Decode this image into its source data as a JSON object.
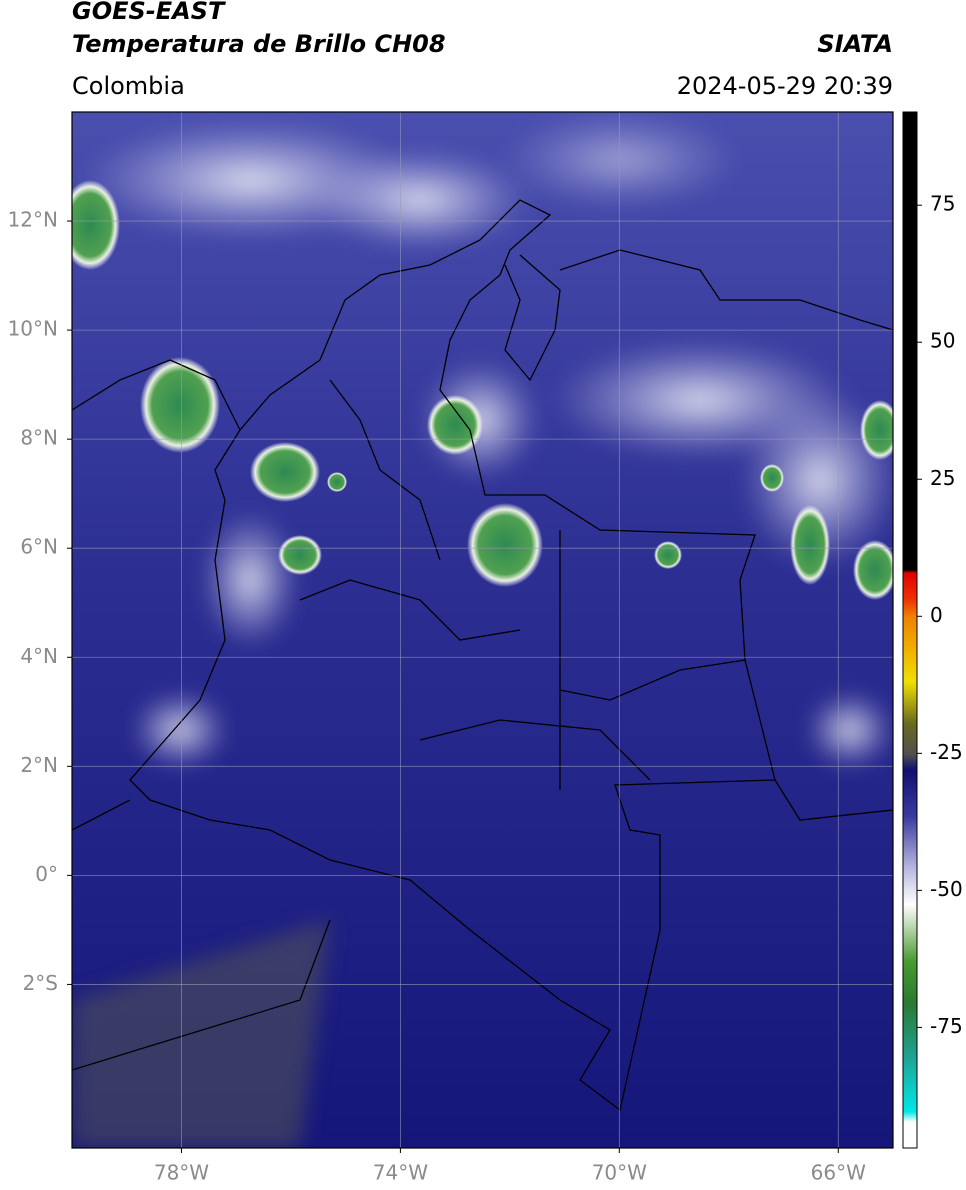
{
  "header": {
    "title_line1": "GOES-EAST",
    "title_line2": "Temperatura de Brillo CH08",
    "source": "SIATA",
    "region": "Colombia",
    "timestamp": "2024-05-29 20:39"
  },
  "map": {
    "xlim": [
      -80,
      -65
    ],
    "ylim": [
      -5,
      14
    ],
    "xticks": [
      {
        "value": -78,
        "label": "78°W"
      },
      {
        "value": -74,
        "label": "74°W"
      },
      {
        "value": -70,
        "label": "70°W"
      },
      {
        "value": -66,
        "label": "66°W"
      }
    ],
    "yticks": [
      {
        "value": 12,
        "label": "12°N"
      },
      {
        "value": 10,
        "label": "10°N"
      },
      {
        "value": 8,
        "label": "8°N"
      },
      {
        "value": 6,
        "label": "6°N"
      },
      {
        "value": 4,
        "label": "4°N"
      },
      {
        "value": 2,
        "label": "2°N"
      },
      {
        "value": 0,
        "label": "0°"
      },
      {
        "value": -2,
        "label": "2°S"
      }
    ],
    "grid": true
  },
  "colorbar": {
    "lim": [
      -97,
      92
    ],
    "ticks": [
      75,
      50,
      25,
      0,
      -25,
      -50,
      -75
    ]
  }
}
